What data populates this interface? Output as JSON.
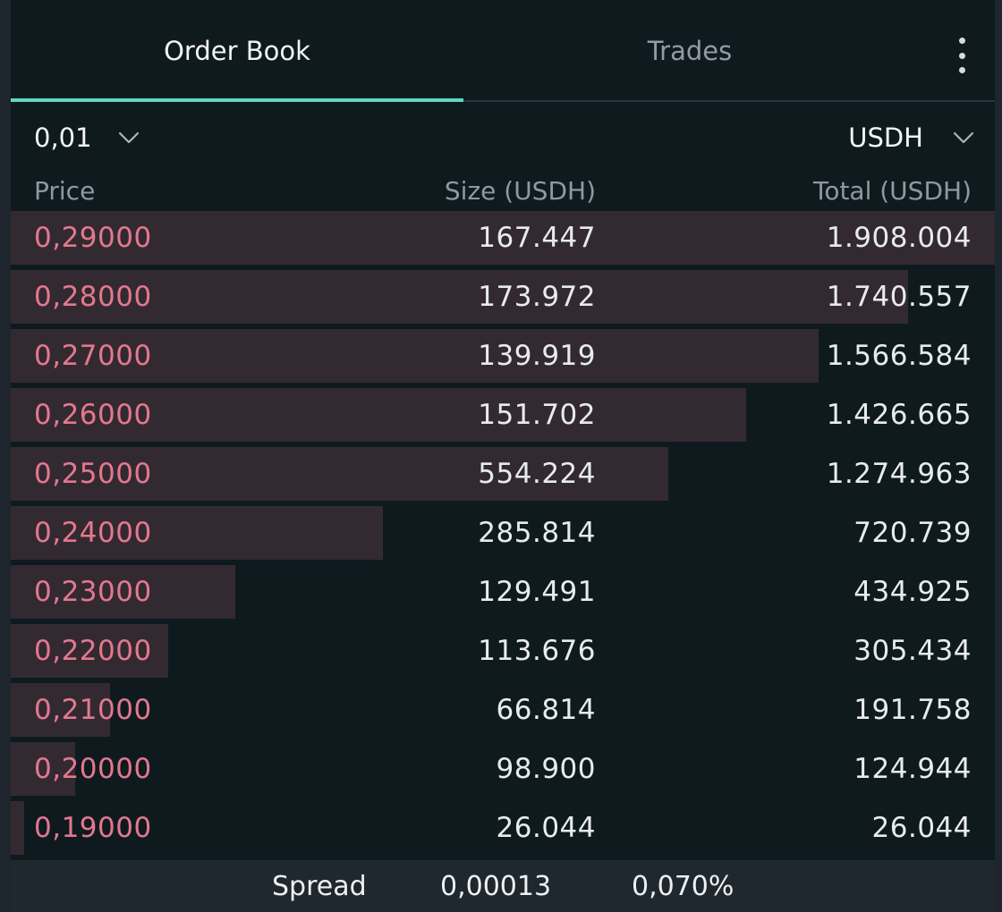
{
  "tabs": [
    {
      "label": "Order Book",
      "active": true
    },
    {
      "label": "Trades",
      "active": false
    }
  ],
  "accent_color": "#5ed5c3",
  "ask_color": "#e3788e",
  "depth_bar_color": "#332a31",
  "controls": {
    "tick_size": "0,01",
    "unit": "USDH"
  },
  "columns": {
    "price": "Price",
    "size": "Size (USDH)",
    "total": "Total (USDH)"
  },
  "asks": [
    {
      "price": "0,29000",
      "size": "167.447",
      "total": "1.908.004",
      "total_value": 1908004
    },
    {
      "price": "0,28000",
      "size": "173.972",
      "total": "1.740.557",
      "total_value": 1740557
    },
    {
      "price": "0,27000",
      "size": "139.919",
      "total": "1.566.584",
      "total_value": 1566584
    },
    {
      "price": "0,26000",
      "size": "151.702",
      "total": "1.426.665",
      "total_value": 1426665
    },
    {
      "price": "0,25000",
      "size": "554.224",
      "total": "1.274.963",
      "total_value": 1274963
    },
    {
      "price": "0,24000",
      "size": "285.814",
      "total": "720.739",
      "total_value": 720739
    },
    {
      "price": "0,23000",
      "size": "129.491",
      "total": "434.925",
      "total_value": 434925
    },
    {
      "price": "0,22000",
      "size": "113.676",
      "total": "305.434",
      "total_value": 305434
    },
    {
      "price": "0,21000",
      "size": "66.814",
      "total": "191.758",
      "total_value": 191758
    },
    {
      "price": "0,20000",
      "size": "98.900",
      "total": "124.944",
      "total_value": 124944
    },
    {
      "price": "0,19000",
      "size": "26.044",
      "total": "26.044",
      "total_value": 26044
    }
  ],
  "spread": {
    "label": "Spread",
    "value": "0,00013",
    "percent": "0,070%"
  },
  "icons": {
    "menu": "more-vertical-icon",
    "dropdown": "chevron-down-icon"
  }
}
